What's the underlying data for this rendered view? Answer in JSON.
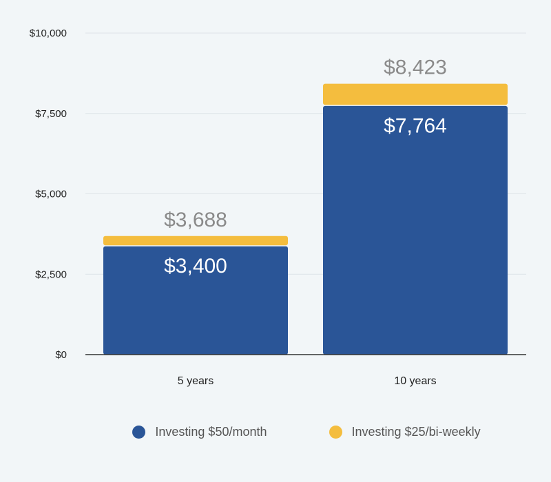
{
  "chart_data": {
    "type": "bar",
    "stacked": true,
    "categories": [
      "5 years",
      "10 years"
    ],
    "ylim": [
      0,
      10000
    ],
    "yticks": [
      0,
      2500,
      5000,
      7500,
      10000
    ],
    "ytick_labels": [
      "$0",
      "$2,500",
      "$5,000",
      "$7,500",
      "$10,000"
    ],
    "grid": true,
    "legend_position": "bottom",
    "series": [
      {
        "name": "Investing $50/month",
        "color": "#2a5597",
        "values": [
          3400,
          7764
        ],
        "labels": [
          "$3,400",
          "$7,764"
        ]
      },
      {
        "name": "Investing $25/bi-weekly",
        "color": "#f4bd3e",
        "values": [
          288,
          659
        ],
        "totals": [
          3688,
          8423
        ],
        "labels": [
          "$3,688",
          "$8,423"
        ]
      }
    ]
  }
}
